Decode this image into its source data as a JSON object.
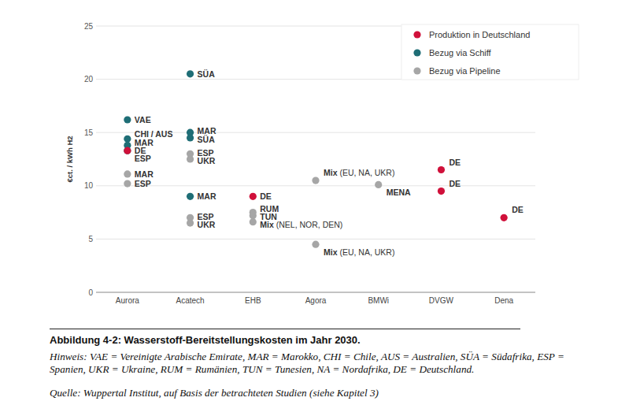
{
  "chart_data": {
    "type": "scatter",
    "y_label": "€ct. / kWh H2",
    "categories": [
      "Aurora",
      "Acatech",
      "EHB",
      "Agora",
      "BMWi",
      "DVGW",
      "Dena"
    ],
    "ylim": [
      0,
      25
    ],
    "yticks": [
      0,
      5,
      10,
      15,
      20,
      25
    ],
    "grid": true,
    "legend": "top-right",
    "series": [
      {
        "name": "Produktion in Deutschland",
        "color": "#d0103a",
        "marker": "circle",
        "x": [
          "Aurora",
          "EHB",
          "DVGW",
          "DVGW",
          "Dena"
        ],
        "values": [
          13.3,
          9.0,
          11.5,
          9.5,
          7.0
        ],
        "point_labels": [
          "DE",
          "DE",
          "DE",
          "DE",
          "DE"
        ]
      },
      {
        "name": "Bezug via Schiff",
        "color": "#1f6e76",
        "marker": "circle",
        "x": [
          "Aurora",
          "Aurora",
          "Aurora",
          "Aurora",
          "Acatech",
          "Acatech",
          "Acatech",
          "Acatech"
        ],
        "values": [
          16.2,
          14.4,
          13.8,
          13.3,
          20.5,
          15.0,
          14.5,
          9.0
        ],
        "point_labels": [
          "VAE",
          "CHI / AUS",
          "MAR",
          "ESP",
          "SÜA",
          "MAR",
          "SÜA",
          "MAR"
        ]
      },
      {
        "name": "Bezug via Pipeline",
        "color": "#a6a6a6",
        "marker": "circle",
        "x": [
          "Aurora",
          "Aurora",
          "Acatech",
          "Acatech",
          "Acatech",
          "Acatech",
          "EHB",
          "EHB",
          "EHB",
          "Agora",
          "Agora",
          "BMWi"
        ],
        "values": [
          11.1,
          10.2,
          13.0,
          12.5,
          7.0,
          6.5,
          7.5,
          7.2,
          6.6,
          10.5,
          4.5,
          10.1
        ],
        "point_labels": [
          "MAR",
          "ESP",
          "ESP",
          "UKR",
          "ESP",
          "UKR",
          "RUM",
          "TUN",
          "Mix (NEL, NOR, DEN)",
          "Mix (EU, NA, UKR)",
          "Mix (EU, NA, UKR)",
          "MENA"
        ]
      }
    ]
  },
  "caption": {
    "title": "Abbildung 4-2: Wasserstoff-Bereitstellungskosten im Jahr 2030.",
    "note": "Hinweis: VAE = Vereinigte Arabische Emirate, MAR = Marokko, CHI = Chile, AUS = Australien, SÜA = Südafrika, ESP = Spanien, UKR = Ukraine, RUM = Rumänien, TUN = Tunesien, NA = Nordafrika, DE = Deutschland.",
    "source": "Quelle: Wuppertal Institut, auf Basis der betrachteten Studien (siehe Kapitel 3)"
  }
}
